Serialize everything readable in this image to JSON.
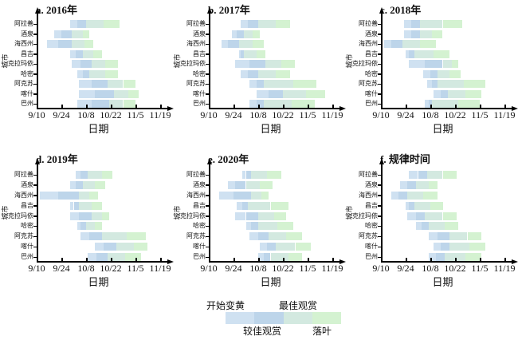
{
  "figure": {
    "background": "#ffffff"
  },
  "chart_data": {
    "type": "bar",
    "orientation": "horizontal-gantt",
    "x_axis": {
      "label": "日期",
      "tick_labels": [
        "9/10",
        "9/24",
        "10/8",
        "10/22",
        "11/5",
        "11/19"
      ],
      "tick_days": [
        0,
        14,
        28,
        42,
        56,
        70
      ],
      "range_days": [
        0,
        70
      ]
    },
    "y_axis": {
      "label": "城市",
      "categories": [
        "阿拉善",
        "酒泉",
        "海西州",
        "昌吉",
        "克拉玛依",
        "哈密",
        "阿克苏",
        "喀什",
        "巴州"
      ]
    },
    "phases": [
      {
        "name": "开始变黄",
        "color": "#cfe1f1"
      },
      {
        "name": "较佳观赏",
        "color": "#bdd5ea"
      },
      {
        "name": "最佳观赏",
        "color": "#d3e9e0"
      },
      {
        "name": "落叶",
        "color": "#d4f2d1"
      }
    ],
    "bars_format": "days after 9/10: [开始变黄, 较佳观赏, 最佳观赏, 落叶, 结束]",
    "panels": [
      {
        "label": "a. 2016年",
        "bars": [
          [
            19,
            23,
            28,
            38,
            47
          ],
          [
            10,
            14,
            20,
            26,
            30
          ],
          [
            6,
            12,
            20,
            27,
            32
          ],
          [
            19,
            22,
            26,
            32,
            37
          ],
          [
            20,
            25,
            31,
            39,
            46
          ],
          [
            23,
            26,
            30,
            39,
            46
          ],
          [
            24,
            31,
            40,
            49,
            56
          ],
          [
            24,
            33,
            44,
            52,
            58
          ],
          [
            23,
            31,
            41,
            49,
            56
          ]
        ]
      },
      {
        "label": "b. 2017年",
        "bars": [
          [
            18,
            22,
            28,
            38,
            46
          ],
          [
            13,
            16,
            20,
            25,
            29
          ],
          [
            7,
            11,
            17,
            25,
            31
          ],
          [
            17,
            18,
            20,
            27,
            32
          ],
          [
            15,
            23,
            32,
            41,
            49
          ],
          [
            18,
            22,
            28,
            38,
            46
          ],
          [
            23,
            27,
            31,
            48,
            61
          ],
          [
            27,
            34,
            42,
            55,
            66
          ],
          [
            23,
            27,
            31,
            47,
            60
          ]
        ]
      },
      {
        "label": "c. 2018年",
        "bars": [
          [
            13,
            17,
            22,
            35,
            46
          ],
          [
            13,
            17,
            22,
            29,
            35
          ],
          [
            2,
            6,
            12,
            22,
            31
          ],
          [
            14,
            16,
            19,
            30,
            39
          ],
          [
            16,
            25,
            35,
            40,
            44
          ],
          [
            24,
            28,
            32,
            39,
            45
          ],
          [
            26,
            29,
            32,
            47,
            59
          ],
          [
            30,
            34,
            38,
            48,
            57
          ],
          [
            25,
            27,
            29,
            44,
            56
          ]
        ]
      },
      {
        "label": "d. 2019年",
        "bars": [
          [
            22,
            25,
            29,
            37,
            43
          ],
          [
            19,
            22,
            26,
            33,
            39
          ],
          [
            2,
            12,
            24,
            30,
            35
          ],
          [
            19,
            21,
            24,
            31,
            37
          ],
          [
            19,
            24,
            31,
            37,
            41
          ],
          [
            23,
            25,
            28,
            33,
            37
          ],
          [
            25,
            30,
            37,
            51,
            62
          ],
          [
            33,
            38,
            45,
            55,
            63
          ],
          [
            29,
            34,
            40,
            50,
            59
          ]
        ]
      },
      {
        "label": "e. 2020年",
        "bars": [
          [
            19,
            21,
            24,
            33,
            41
          ],
          [
            11,
            15,
            21,
            29,
            36
          ],
          [
            6,
            14,
            24,
            30,
            34
          ],
          [
            16,
            19,
            22,
            35,
            45
          ],
          [
            15,
            21,
            28,
            37,
            44
          ],
          [
            21,
            24,
            28,
            39,
            48
          ],
          [
            23,
            28,
            34,
            44,
            53
          ],
          [
            29,
            33,
            38,
            49,
            58
          ],
          [
            28,
            31,
            35,
            45,
            53
          ]
        ]
      },
      {
        "label": "f. 规律时间",
        "bars": [
          [
            16,
            21,
            26,
            35,
            43
          ],
          [
            11,
            15,
            20,
            27,
            32
          ],
          [
            6,
            10,
            15,
            24,
            32
          ],
          [
            14,
            16,
            19,
            28,
            35
          ],
          [
            15,
            20,
            25,
            35,
            43
          ],
          [
            20,
            23,
            27,
            36,
            44
          ],
          [
            27,
            32,
            39,
            49,
            57
          ],
          [
            30,
            34,
            39,
            50,
            59
          ],
          [
            27,
            31,
            36,
            48,
            57
          ]
        ]
      }
    ]
  },
  "legend": {
    "items": [
      {
        "label": "开始变黄",
        "color": "#cfe1f1",
        "label_position": "top"
      },
      {
        "label": "较佳观赏",
        "color": "#bdd5ea",
        "label_position": "bottom"
      },
      {
        "label": "最佳观赏",
        "color": "#d3e9e0",
        "label_position": "top"
      },
      {
        "label": "落叶",
        "color": "#d4f2d1",
        "label_position": "bottom"
      }
    ]
  }
}
